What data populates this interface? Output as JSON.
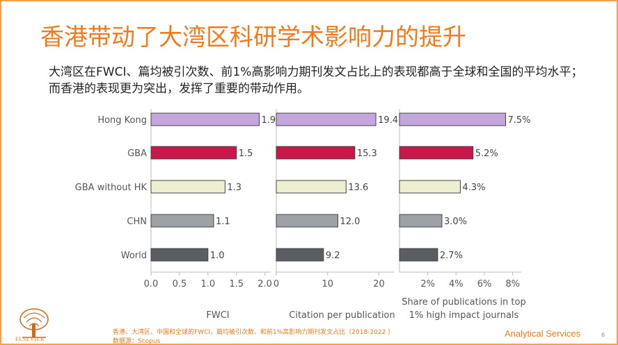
{
  "header": {
    "title": "香港带动了大湾区科研学术影响力的提升",
    "subtitle": "大湾区在FWCI、篇均被引次数、前1%高影响力期刊发文占比上的表现都高于全球和全国的平均水平；而香港的表现更为突出，发挥了重要的带动作用。"
  },
  "footer": {
    "note": "香港、大湾区、中国和全球的FWCI，篇均被引次数、和前1%高影响力期刊发文占比（2018-2022 ）",
    "source": "数据源：Scopus",
    "brand": "Analytical Services",
    "page": "6",
    "logo_text": "ELSEVIER"
  },
  "chart_data": {
    "type": "bar",
    "orientation": "horizontal",
    "categories": [
      "Hong Kong",
      "GBA",
      "GBA without HK",
      "CHN",
      "World"
    ],
    "category_colors": [
      "#c3a7dc",
      "#c8174a",
      "#eeeed0",
      "#9ea1a6",
      "#5a5d62"
    ],
    "panels": [
      {
        "xlabel": "FWCI",
        "values": [
          1.9,
          1.5,
          1.3,
          1.1,
          1.0
        ],
        "value_labels": [
          "1.9",
          "1.5",
          "1.3",
          "1.1",
          "1.0"
        ],
        "xlim": [
          0,
          2.2
        ],
        "ticks": [
          0.0,
          0.5,
          1.0,
          1.5,
          2.0
        ],
        "tick_labels": [
          "0.0",
          "0.5",
          "1.0",
          "1.5",
          "2.0"
        ]
      },
      {
        "xlabel": "Citation per publication",
        "values": [
          19.4,
          15.3,
          13.6,
          12.0,
          9.2
        ],
        "value_labels": [
          "19.4",
          "15.3",
          "13.6",
          "12.0",
          "9.2"
        ],
        "xlim": [
          0,
          24
        ],
        "ticks": [
          0,
          10,
          20
        ],
        "tick_labels": [
          "0",
          "10",
          "20"
        ]
      },
      {
        "xlabel": "Share of publications in top 1% high impact journals",
        "values": [
          7.5,
          5.2,
          4.3,
          3.0,
          2.7
        ],
        "value_labels": [
          "7.5%",
          "5.2%",
          "4.3%",
          "3.0%",
          "2.7%"
        ],
        "xlim": [
          0,
          9
        ],
        "ticks": [
          2,
          4,
          6,
          8
        ],
        "tick_labels": [
          "2%",
          "4%",
          "6%",
          "8%"
        ]
      }
    ]
  }
}
